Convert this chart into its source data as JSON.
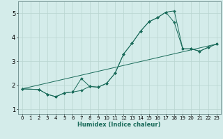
{
  "xlabel": "Humidex (Indice chaleur)",
  "background_color": "#d4ecea",
  "grid_color": "#b8d4d0",
  "line_color": "#1a6b5a",
  "xlim": [
    -0.5,
    23.5
  ],
  "ylim": [
    0.8,
    5.5
  ],
  "xticks": [
    0,
    1,
    2,
    3,
    4,
    5,
    6,
    7,
    8,
    9,
    10,
    11,
    12,
    13,
    14,
    15,
    16,
    17,
    18,
    19,
    20,
    21,
    22,
    23
  ],
  "yticks": [
    1,
    2,
    3,
    4,
    5
  ],
  "lines": [
    {
      "x": [
        0,
        2,
        3,
        4,
        5,
        6,
        7,
        8,
        9,
        10,
        11,
        12,
        13,
        14,
        15,
        16,
        17,
        18,
        19,
        20,
        21,
        22,
        23
      ],
      "y": [
        1.85,
        1.82,
        1.62,
        1.52,
        1.68,
        1.72,
        1.78,
        1.95,
        1.92,
        2.08,
        2.5,
        3.3,
        3.75,
        4.25,
        4.65,
        4.82,
        5.05,
        5.1,
        3.52,
        3.52,
        3.42,
        3.58,
        3.72
      ]
    },
    {
      "x": [
        0,
        2,
        3,
        4,
        5,
        6,
        7,
        8,
        9,
        10,
        11,
        12,
        13,
        14,
        15,
        16,
        17,
        18,
        19,
        20,
        21,
        22,
        23
      ],
      "y": [
        1.85,
        1.82,
        1.62,
        1.52,
        1.68,
        1.72,
        2.28,
        1.95,
        1.92,
        2.08,
        2.5,
        3.3,
        3.75,
        4.25,
        4.65,
        4.82,
        5.05,
        4.62,
        3.52,
        3.52,
        3.42,
        3.58,
        3.72
      ]
    },
    {
      "x": [
        0,
        23
      ],
      "y": [
        1.85,
        3.72
      ]
    }
  ]
}
